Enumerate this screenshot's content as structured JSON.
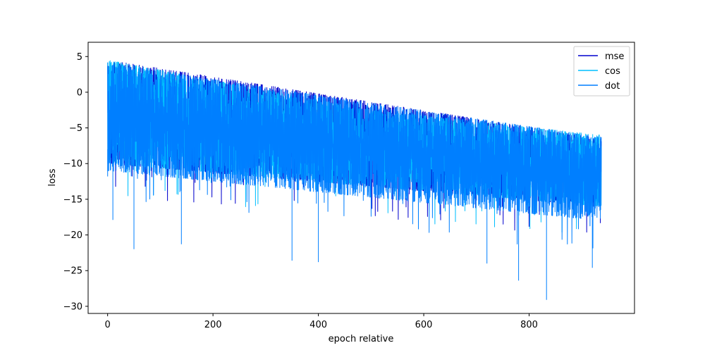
{
  "chart_data": {
    "type": "line",
    "title": "",
    "xlabel": "epoch relative",
    "ylabel": "loss",
    "xlim": [
      -37,
      1000
    ],
    "ylim": [
      -31,
      7
    ],
    "xticks": [
      0,
      200,
      400,
      600,
      800
    ],
    "yticks": [
      5,
      0,
      -5,
      -10,
      -15,
      -20,
      -25,
      -30
    ],
    "x_range": [
      0,
      937
    ],
    "grid": false,
    "legend_position": "top-right",
    "series": [
      {
        "name": "mse",
        "color": "#0000cd",
        "trend_upper": [
          [
            0,
            4.5
          ],
          [
            937,
            -6.5
          ]
        ],
        "trend_lower": [
          [
            0,
            -10
          ],
          [
            937,
            -16
          ]
        ]
      },
      {
        "name": "cos",
        "color": "#00bfff",
        "trend_upper": [
          [
            0,
            4.5
          ],
          [
            500,
            -2.5
          ],
          [
            937,
            -6.0
          ]
        ],
        "trend_lower": [
          [
            0,
            -10
          ],
          [
            937,
            -16
          ]
        ]
      },
      {
        "name": "dot",
        "color": "#007fff",
        "trend_upper": [
          [
            0,
            4.0
          ],
          [
            937,
            -6.3
          ]
        ],
        "trend_lower": [
          [
            0,
            -11
          ],
          [
            937,
            -18
          ]
        ],
        "notable_lows": [
          [
            0,
            -11.8
          ],
          [
            10,
            -17.9
          ],
          [
            50,
            -22.0
          ],
          [
            140,
            -21.3
          ],
          [
            350,
            -23.6
          ],
          [
            400,
            -23.8
          ],
          [
            720,
            -24.0
          ],
          [
            780,
            -26.4
          ],
          [
            833,
            -29.1
          ],
          [
            920,
            -24.6
          ]
        ]
      }
    ]
  }
}
